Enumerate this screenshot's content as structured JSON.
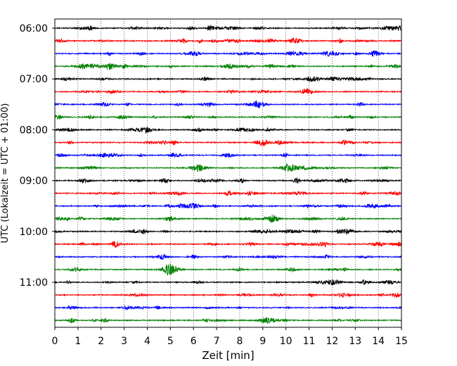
{
  "chart_data": {
    "type": "line",
    "title": "",
    "xlabel": "Zeit  [min]",
    "ylabel": "UTC (Lokalzeit = UTC + 01:00)",
    "xlim": [
      0,
      15
    ],
    "x_ticks": [
      "0",
      "1",
      "2",
      "3",
      "4",
      "5",
      "6",
      "7",
      "8",
      "9",
      "10",
      "11",
      "12",
      "13",
      "14",
      "15"
    ],
    "y_tick_labels": [
      "06:00",
      "07:00",
      "08:00",
      "09:00",
      "10:00",
      "11:00"
    ],
    "rows_per_hour": 4,
    "minutes_per_row": 15,
    "grid_x": true,
    "trace_colors": [
      "#000000",
      "#ff0000",
      "#0000ff",
      "#008000"
    ],
    "traces": [
      {
        "start": "06:00"
      },
      {
        "start": "06:15"
      },
      {
        "start": "06:30"
      },
      {
        "start": "06:45"
      },
      {
        "start": "07:00"
      },
      {
        "start": "07:15"
      },
      {
        "start": "07:30"
      },
      {
        "start": "07:45"
      },
      {
        "start": "08:00"
      },
      {
        "start": "08:15"
      },
      {
        "start": "08:30"
      },
      {
        "start": "08:45"
      },
      {
        "start": "09:00"
      },
      {
        "start": "09:15"
      },
      {
        "start": "09:30"
      },
      {
        "start": "09:45"
      },
      {
        "start": "10:00"
      },
      {
        "start": "10:15"
      },
      {
        "start": "10:30"
      },
      {
        "start": "10:45"
      },
      {
        "start": "11:00"
      },
      {
        "start": "11:15"
      },
      {
        "start": "11:30"
      },
      {
        "start": "11:45"
      }
    ]
  }
}
